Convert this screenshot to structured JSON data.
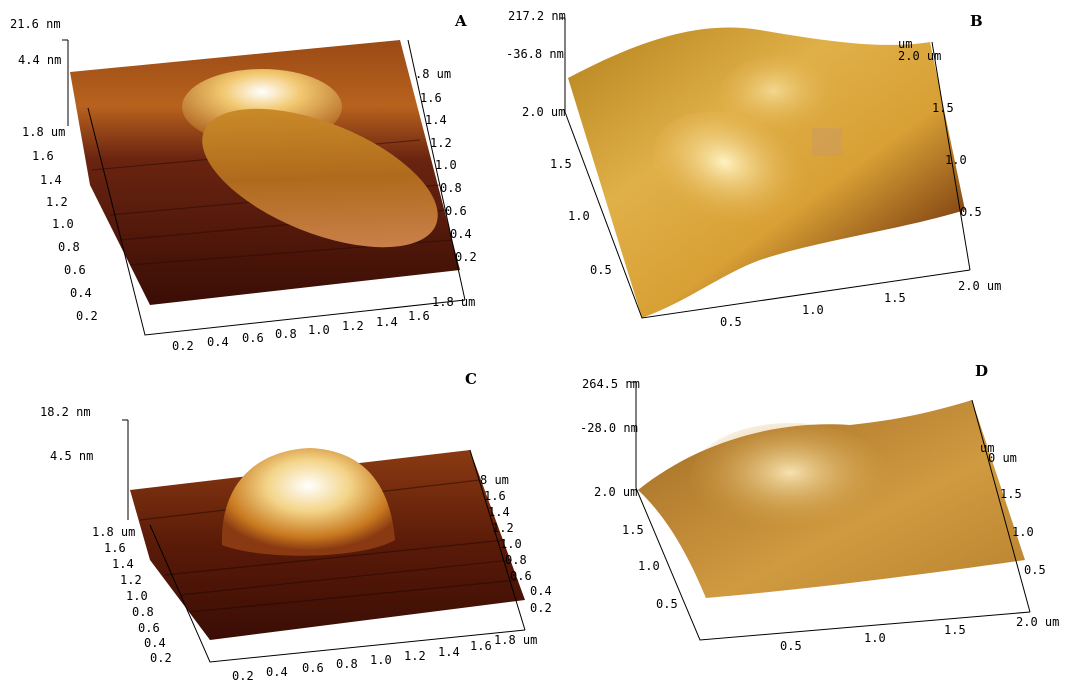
{
  "figure": {
    "panels": [
      {
        "letter": "A",
        "z_max": "21.6 nm",
        "z_min": "4.4 nm",
        "x_ticks": [
          "0.2",
          "0.4",
          "0.6",
          "0.8",
          "1.0",
          "1.2",
          "1.4",
          "1.6",
          "1.8 um"
        ],
        "y_ticks_left": [
          "1.8 um",
          "1.6",
          "1.4",
          "1.2",
          "1.0",
          "0.8",
          "0.6",
          "0.4",
          "0.2"
        ],
        "y_ticks_right": [
          ".8 um",
          "1.6",
          "1.4",
          "1.2",
          "1.0",
          "0.8",
          "0.6",
          "0.4",
          "0.2"
        ]
      },
      {
        "letter": "B",
        "z_max": "217.2 nm",
        "z_min": "-36.8 nm",
        "x_ticks": [
          "0.5",
          "1.0",
          "1.5",
          "2.0 um"
        ],
        "y_ticks_left": [
          "2.0 um",
          "1.5",
          "1.0",
          "0.5"
        ],
        "y_ticks_right": [
          "2.0 um",
          "1.5",
          "1.0",
          "0.5"
        ],
        "y_right_unit": "um"
      },
      {
        "letter": "C",
        "z_max": "18.2 nm",
        "z_min": "4.5 nm",
        "x_ticks": [
          "0.2",
          "0.4",
          "0.6",
          "0.8",
          "1.0",
          "1.2",
          "1.4",
          "1.6",
          "1.8 um"
        ],
        "y_ticks_left": [
          "1.8 um",
          "1.6",
          "1.4",
          "1.2",
          "1.0",
          "0.8",
          "0.6",
          "0.4",
          "0.2"
        ],
        "y_ticks_right": [
          "8 um",
          "1.6",
          "1.4",
          "1.2",
          "1.0",
          "0.8",
          "0.6",
          "0.4",
          "0.2"
        ]
      },
      {
        "letter": "D",
        "z_max": "264.5 nm",
        "z_min": "-28.0 nm",
        "x_ticks": [
          "0.5",
          "1.0",
          "1.5",
          "2.0 um"
        ],
        "y_ticks_left": [
          "2.0 um",
          "1.5",
          "1.0",
          "0.5"
        ],
        "y_ticks_right": [
          "0 um",
          "1.5",
          "1.0",
          "0.5"
        ],
        "y_right_unit": "um"
      }
    ],
    "colors": {
      "afm_dark": "#3a0d05",
      "afm_mid": "#8a3a12",
      "afm_orange": "#c8751e",
      "afm_light": "#f0c060",
      "afm_peak": "#fff4d8",
      "afm_tan": "#b07a2e"
    }
  }
}
